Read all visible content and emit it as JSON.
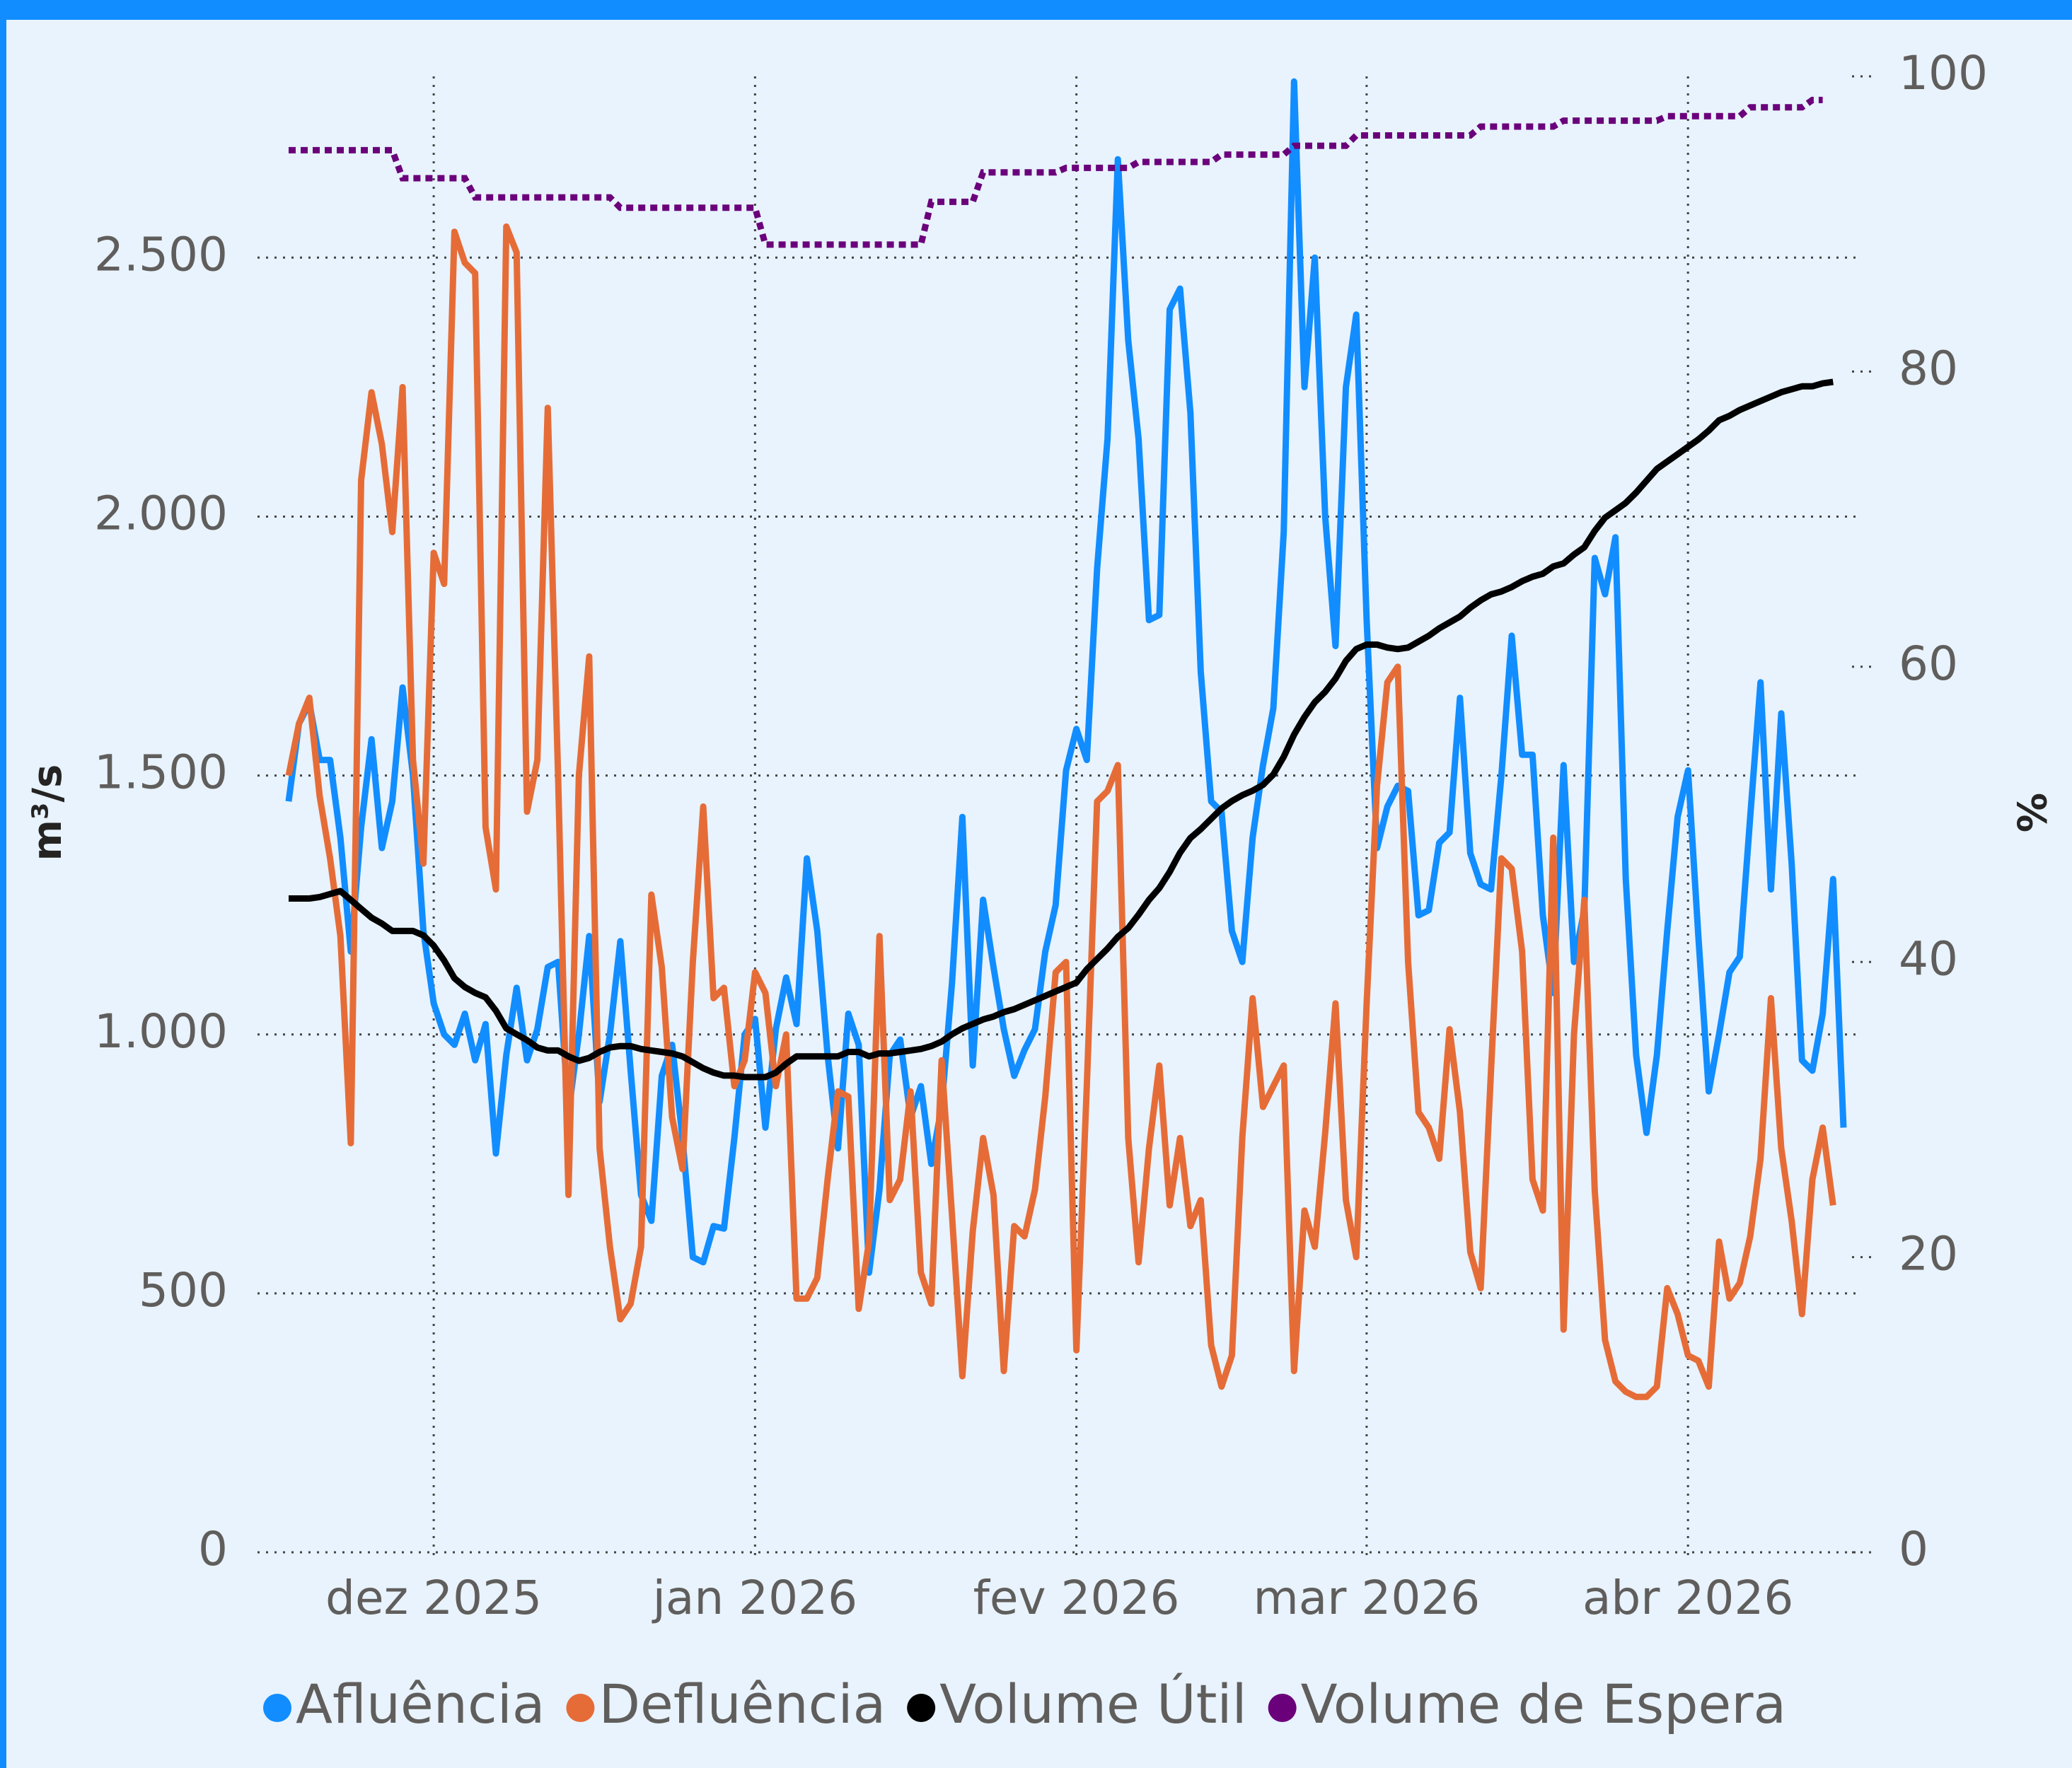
{
  "chart_data": {
    "type": "line",
    "y_label": "m³/s",
    "y2_label": "%",
    "x": [
      -14,
      -13,
      -12,
      -11,
      -10,
      -9,
      -8,
      -7,
      -6,
      -5,
      -4,
      -3,
      -2,
      -1,
      0,
      1,
      2,
      3,
      4,
      5,
      6,
      7,
      8,
      9,
      10,
      11,
      12,
      13,
      14,
      15,
      16,
      17,
      18,
      19,
      20,
      21,
      22,
      23,
      24,
      25,
      26,
      27,
      28,
      29,
      30,
      31,
      32,
      33,
      34,
      35,
      36,
      37,
      38,
      39,
      40,
      41,
      42,
      43,
      44,
      45,
      46,
      47,
      48,
      49,
      50,
      51,
      52,
      53,
      54,
      55,
      56,
      57,
      58,
      59,
      60,
      61,
      62,
      63,
      64,
      65,
      66,
      67,
      68,
      69,
      70,
      71,
      72,
      73,
      74,
      75,
      76,
      77,
      78,
      79,
      80,
      81,
      82,
      83,
      84,
      85,
      86,
      87,
      88,
      89,
      90,
      91,
      92,
      93,
      94,
      95,
      96,
      97,
      98,
      99,
      100,
      101,
      102,
      103,
      104,
      105,
      106,
      107,
      108,
      109,
      110,
      111,
      112,
      113,
      114,
      115,
      116,
      117,
      118,
      119,
      120,
      121,
      122,
      123,
      124,
      125,
      126,
      127,
      128,
      129,
      130,
      131,
      132,
      133,
      134,
      135,
      136
    ],
    "xlim": [
      -17,
      137.3
    ],
    "xticks": [
      {
        "value": 0,
        "label": "dez 2025"
      },
      {
        "value": 31,
        "label": "jan 2026"
      },
      {
        "value": 62,
        "label": "fev 2026"
      },
      {
        "value": 90,
        "label": "mar 2026"
      },
      {
        "value": 121,
        "label": "abr 2026"
      }
    ],
    "ylim": [
      0,
      2850
    ],
    "yticks": [
      0,
      500,
      {
        "value": 1000,
        "label": "1.000"
      },
      {
        "value": 1500,
        "label": "1.500"
      },
      {
        "value": 2000,
        "label": "2.000"
      },
      {
        "value": 2500,
        "label": "2.500"
      }
    ],
    "y2lim": [
      0,
      100
    ],
    "y2ticks": [
      0,
      20,
      40,
      60,
      80,
      100
    ],
    "grid": true,
    "legend": "bottom",
    "series": [
      {
        "name": "Afluência",
        "color": "#118dff",
        "values": [
          1450,
          1600,
          1640,
          1530,
          1530,
          1380,
          1160,
          1400,
          1570,
          1360,
          1450,
          1670,
          1500,
          1200,
          1060,
          1000,
          980,
          1040,
          950,
          1020,
          770,
          960,
          1090,
          950,
          1010,
          1130,
          1140,
          850,
          1000,
          1190,
          870,
          1000,
          1180,
          930,
          690,
          640,
          920,
          980,
          800,
          570,
          560,
          630,
          625,
          800,
          1000,
          1030,
          820,
          1010,
          1110,
          1020,
          1340,
          1200,
          960,
          780,
          1040,
          980,
          540,
          700,
          960,
          990,
          840,
          900,
          750,
          860,
          1100,
          1420,
          940,
          1260,
          1130,
          1010,
          920,
          970,
          1010,
          1160,
          1250,
          1510,
          1590,
          1530,
          1900,
          2150,
          2690,
          2340,
          2150,
          1800,
          1810,
          2400,
          2440,
          2200,
          1700,
          1450,
          1430,
          1200,
          1140,
          1380,
          1520,
          1630,
          1970,
          2840,
          2250,
          2500,
          2000,
          1750,
          2250,
          2390,
          1800,
          1360,
          1440,
          1480,
          1470,
          1230,
          1240,
          1370,
          1390,
          1650,
          1350,
          1290,
          1280,
          1500,
          1770,
          1540,
          1540,
          1230,
          1080,
          1520,
          1140,
          1240,
          1920,
          1850,
          1960,
          1300,
          960,
          810,
          960,
          1200,
          1420,
          1510,
          1190,
          890,
          1000,
          1120,
          1150,
          1420,
          1680,
          1280,
          1620,
          1330,
          950,
          930,
          1040,
          1300,
          820
        ]
      },
      {
        "name": "Defluência",
        "color": "#e66c37",
        "values": [
          1500,
          1600,
          1650,
          1460,
          1340,
          1190,
          790,
          2070,
          2240,
          2140,
          1970,
          2250,
          1530,
          1330,
          1930,
          1870,
          2550,
          2490,
          2470,
          1400,
          1280,
          2560,
          2510,
          1430,
          1530,
          2210,
          1500,
          690,
          1500,
          1730,
          780,
          590,
          450,
          480,
          590,
          1270,
          1130,
          840,
          740,
          1140,
          1440,
          1070,
          1090,
          900,
          950,
          1120,
          1080,
          900,
          1000,
          490,
          490,
          530,
          720,
          890,
          880,
          470,
          600,
          1190,
          680,
          720,
          890,
          540,
          480,
          950,
          650,
          340,
          620,
          800,
          690,
          350,
          630,
          610,
          700,
          880,
          1120,
          1140,
          390,
          900,
          1450,
          1470,
          1520,
          800,
          560,
          780,
          940,
          670,
          800,
          630,
          680,
          400,
          320,
          380,
          800,
          1070,
          860,
          900,
          940,
          350,
          660,
          590,
          810,
          1060,
          680,
          570,
          1060,
          1480,
          1680,
          1710,
          1140,
          850,
          820,
          760,
          1010,
          850,
          580,
          510,
          930,
          1340,
          1320,
          1160,
          720,
          660,
          1380,
          430,
          1000,
          1260,
          700,
          410,
          330,
          310,
          300,
          300,
          320,
          510,
          460,
          380,
          370,
          320,
          600,
          490,
          520,
          610,
          760,
          1070,
          780,
          640,
          460,
          720,
          820,
          670,
          null
        ]
      },
      {
        "name": "Volume Útil",
        "color": "#000000",
        "axis": "y2",
        "values": [
          44.3,
          44.3,
          44.3,
          44.4,
          44.6,
          44.8,
          44.2,
          43.6,
          43.0,
          42.6,
          42.1,
          42.1,
          42.1,
          41.8,
          41.1,
          40.1,
          38.9,
          38.3,
          37.9,
          37.6,
          36.7,
          35.5,
          35.1,
          34.7,
          34.2,
          34.0,
          34.0,
          33.6,
          33.3,
          33.5,
          33.9,
          34.2,
          34.3,
          34.3,
          34.1,
          34.0,
          33.9,
          33.8,
          33.6,
          33.2,
          32.8,
          32.5,
          32.3,
          32.3,
          32.2,
          32.2,
          32.2,
          32.5,
          33.1,
          33.6,
          33.6,
          33.6,
          33.6,
          33.6,
          33.9,
          33.9,
          33.6,
          33.8,
          33.8,
          33.9,
          34.0,
          34.1,
          34.3,
          34.6,
          35.1,
          35.5,
          35.8,
          36.1,
          36.3,
          36.6,
          36.8,
          37.1,
          37.4,
          37.7,
          38.0,
          38.3,
          38.6,
          39.5,
          40.2,
          40.9,
          41.7,
          42.3,
          43.2,
          44.2,
          45.0,
          46.1,
          47.4,
          48.4,
          49.0,
          49.7,
          50.4,
          50.9,
          51.3,
          51.6,
          52.0,
          52.7,
          53.9,
          55.4,
          56.6,
          57.6,
          58.3,
          59.2,
          60.4,
          61.2,
          61.5,
          61.5,
          61.3,
          61.2,
          61.3,
          61.7,
          62.1,
          62.6,
          63.0,
          63.4,
          64.0,
          64.5,
          64.9,
          65.1,
          65.4,
          65.8,
          66.1,
          66.3,
          66.8,
          67.0,
          67.6,
          68.1,
          69.2,
          70.1,
          70.6,
          71.1,
          71.8,
          72.6,
          73.4,
          73.9,
          74.4,
          74.9,
          75.4,
          76.0,
          76.7,
          77.0,
          77.4,
          77.7,
          78.0,
          78.3,
          78.6,
          78.8,
          79.0,
          79.0,
          79.2,
          79.3,
          null
        ]
      },
      {
        "name": "Volume de Espera",
        "color": "#6b007b",
        "axis": "y2",
        "line_style": "dashed",
        "values": [
          95.0,
          95.0,
          95.0,
          95.0,
          95.0,
          95.0,
          95.0,
          95.0,
          95.0,
          95.0,
          95.0,
          93.1,
          93.1,
          93.1,
          93.1,
          93.1,
          93.1,
          93.1,
          91.8,
          91.8,
          91.8,
          91.8,
          91.8,
          91.8,
          91.8,
          91.8,
          91.8,
          91.8,
          91.8,
          91.8,
          91.8,
          91.8,
          91.1,
          91.1,
          91.1,
          91.1,
          91.1,
          91.1,
          91.1,
          91.1,
          91.1,
          91.1,
          91.1,
          91.1,
          91.1,
          91.1,
          88.6,
          88.6,
          88.6,
          88.6,
          88.6,
          88.6,
          88.6,
          88.6,
          88.6,
          88.6,
          88.6,
          88.6,
          88.6,
          88.6,
          88.6,
          88.6,
          91.5,
          91.5,
          91.5,
          91.5,
          91.5,
          93.5,
          93.5,
          93.5,
          93.5,
          93.5,
          93.5,
          93.5,
          93.5,
          93.8,
          93.8,
          93.8,
          93.8,
          93.8,
          93.8,
          93.8,
          94.2,
          94.2,
          94.2,
          94.2,
          94.2,
          94.2,
          94.2,
          94.2,
          94.7,
          94.7,
          94.7,
          94.7,
          94.7,
          94.7,
          94.7,
          95.3,
          95.3,
          95.3,
          95.3,
          95.3,
          95.3,
          96.0,
          96.0,
          96.0,
          96.0,
          96.0,
          96.0,
          96.0,
          96.0,
          96.0,
          96.0,
          96.0,
          96.0,
          96.6,
          96.6,
          96.6,
          96.6,
          96.6,
          96.6,
          96.6,
          96.6,
          97.0,
          97.0,
          97.0,
          97.0,
          97.0,
          97.0,
          97.0,
          97.0,
          97.0,
          97.0,
          97.3,
          97.3,
          97.3,
          97.3,
          97.3,
          97.3,
          97.3,
          97.3,
          97.9,
          97.9,
          97.9,
          97.9,
          97.9,
          97.9,
          98.4,
          98.4,
          null,
          null
        ]
      }
    ]
  }
}
